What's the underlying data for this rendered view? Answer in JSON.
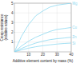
{
  "chart_data": {
    "type": "line",
    "xlabel": "Additive element content by mass (%)",
    "ylabel": "Creep resistance\n(relative values)",
    "x": [
      0,
      5,
      10,
      15,
      20,
      25,
      30,
      35,
      40
    ],
    "series": [
      {
        "name": "Mg",
        "color": "#8cd8f0",
        "values": [
          0,
          1.6,
          2.8,
          3.7,
          4.2,
          4.6,
          4.8,
          4.9,
          5.0
        ]
      },
      {
        "name": "Cu",
        "color": "#8cd8f0",
        "values": [
          0,
          0.6,
          1.1,
          1.5,
          1.8,
          2.1,
          2.3,
          2.4,
          2.5
        ]
      },
      {
        "name": "Zn",
        "color": "#8cd8f0",
        "values": [
          0,
          0.35,
          0.65,
          0.9,
          1.1,
          1.25,
          1.35,
          1.42,
          1.5
        ]
      },
      {
        "name": "Si",
        "color": "#8cd8f0",
        "values": [
          0,
          0.2,
          0.38,
          0.52,
          0.63,
          0.72,
          0.8,
          0.86,
          0.9
        ]
      }
    ],
    "xlim": [
      0,
      40
    ],
    "ylim": [
      0,
      5
    ],
    "xticks": [
      10,
      20,
      30,
      40
    ],
    "yticks": [
      1,
      2,
      3,
      4,
      5
    ],
    "grid": true
  }
}
